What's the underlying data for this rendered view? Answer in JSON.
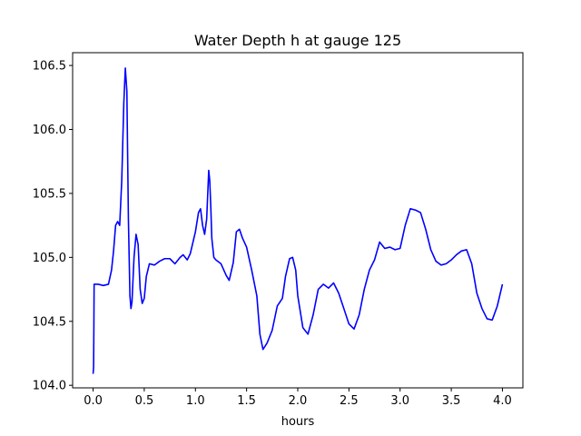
{
  "chart_data": {
    "type": "line",
    "title": "Water Depth h at gauge 125",
    "xlabel": "hours",
    "ylabel": "",
    "xlim": [
      -0.2,
      4.2
    ],
    "ylim": [
      103.98,
      106.6
    ],
    "xticks": [
      0.0,
      0.5,
      1.0,
      1.5,
      2.0,
      2.5,
      3.0,
      3.5,
      4.0
    ],
    "xtick_labels": [
      "0.0",
      "0.5",
      "1.0",
      "1.5",
      "2.0",
      "2.5",
      "3.0",
      "3.5",
      "4.0"
    ],
    "yticks": [
      104.0,
      104.5,
      105.0,
      105.5,
      106.0,
      106.5
    ],
    "ytick_labels": [
      "104.0",
      "104.5",
      "105.0",
      "105.5",
      "106.0",
      "106.5"
    ],
    "grid": false,
    "legend": "none",
    "series": [
      {
        "color": "#0000ff",
        "x": [
          0.0,
          0.005,
          0.008,
          0.01,
          0.05,
          0.1,
          0.15,
          0.18,
          0.2,
          0.22,
          0.24,
          0.26,
          0.28,
          0.3,
          0.315,
          0.33,
          0.345,
          0.36,
          0.37,
          0.38,
          0.4,
          0.42,
          0.44,
          0.46,
          0.48,
          0.5,
          0.52,
          0.55,
          0.6,
          0.65,
          0.7,
          0.75,
          0.8,
          0.85,
          0.88,
          0.92,
          0.95,
          1.0,
          1.03,
          1.05,
          1.07,
          1.09,
          1.11,
          1.13,
          1.14,
          1.15,
          1.16,
          1.18,
          1.2,
          1.25,
          1.3,
          1.33,
          1.37,
          1.4,
          1.43,
          1.46,
          1.5,
          1.55,
          1.6,
          1.63,
          1.66,
          1.7,
          1.75,
          1.8,
          1.85,
          1.88,
          1.92,
          1.95,
          1.98,
          2.0,
          2.05,
          2.1,
          2.15,
          2.2,
          2.25,
          2.3,
          2.35,
          2.4,
          2.45,
          2.5,
          2.55,
          2.6,
          2.65,
          2.7,
          2.75,
          2.8,
          2.85,
          2.9,
          2.95,
          3.0,
          3.05,
          3.1,
          3.15,
          3.2,
          3.25,
          3.3,
          3.35,
          3.4,
          3.45,
          3.5,
          3.55,
          3.6,
          3.65,
          3.7,
          3.75,
          3.8,
          3.85,
          3.9,
          3.95,
          4.0
        ],
        "y": [
          104.09,
          104.14,
          104.5,
          104.79,
          104.79,
          104.78,
          104.79,
          104.9,
          105.05,
          105.25,
          105.28,
          105.25,
          105.6,
          106.2,
          106.48,
          106.3,
          105.3,
          104.7,
          104.6,
          104.65,
          105.0,
          105.18,
          105.1,
          104.75,
          104.64,
          104.68,
          104.85,
          104.95,
          104.94,
          104.97,
          104.99,
          104.99,
          104.95,
          105.0,
          105.02,
          104.98,
          105.03,
          105.2,
          105.35,
          105.38,
          105.25,
          105.18,
          105.3,
          105.68,
          105.6,
          105.4,
          105.15,
          105.0,
          104.98,
          104.95,
          104.86,
          104.82,
          104.96,
          105.2,
          105.22,
          105.15,
          105.08,
          104.9,
          104.7,
          104.4,
          104.28,
          104.33,
          104.43,
          104.62,
          104.68,
          104.85,
          104.99,
          105.0,
          104.9,
          104.7,
          104.45,
          104.4,
          104.55,
          104.75,
          104.79,
          104.76,
          104.8,
          104.72,
          104.6,
          104.48,
          104.44,
          104.55,
          104.75,
          104.9,
          104.98,
          105.12,
          105.07,
          105.08,
          105.06,
          105.07,
          105.25,
          105.38,
          105.37,
          105.35,
          105.22,
          105.06,
          104.97,
          104.94,
          104.95,
          104.98,
          105.02,
          105.05,
          105.06,
          104.95,
          104.72,
          104.6,
          104.52,
          104.51,
          104.62,
          104.79
        ]
      }
    ]
  }
}
